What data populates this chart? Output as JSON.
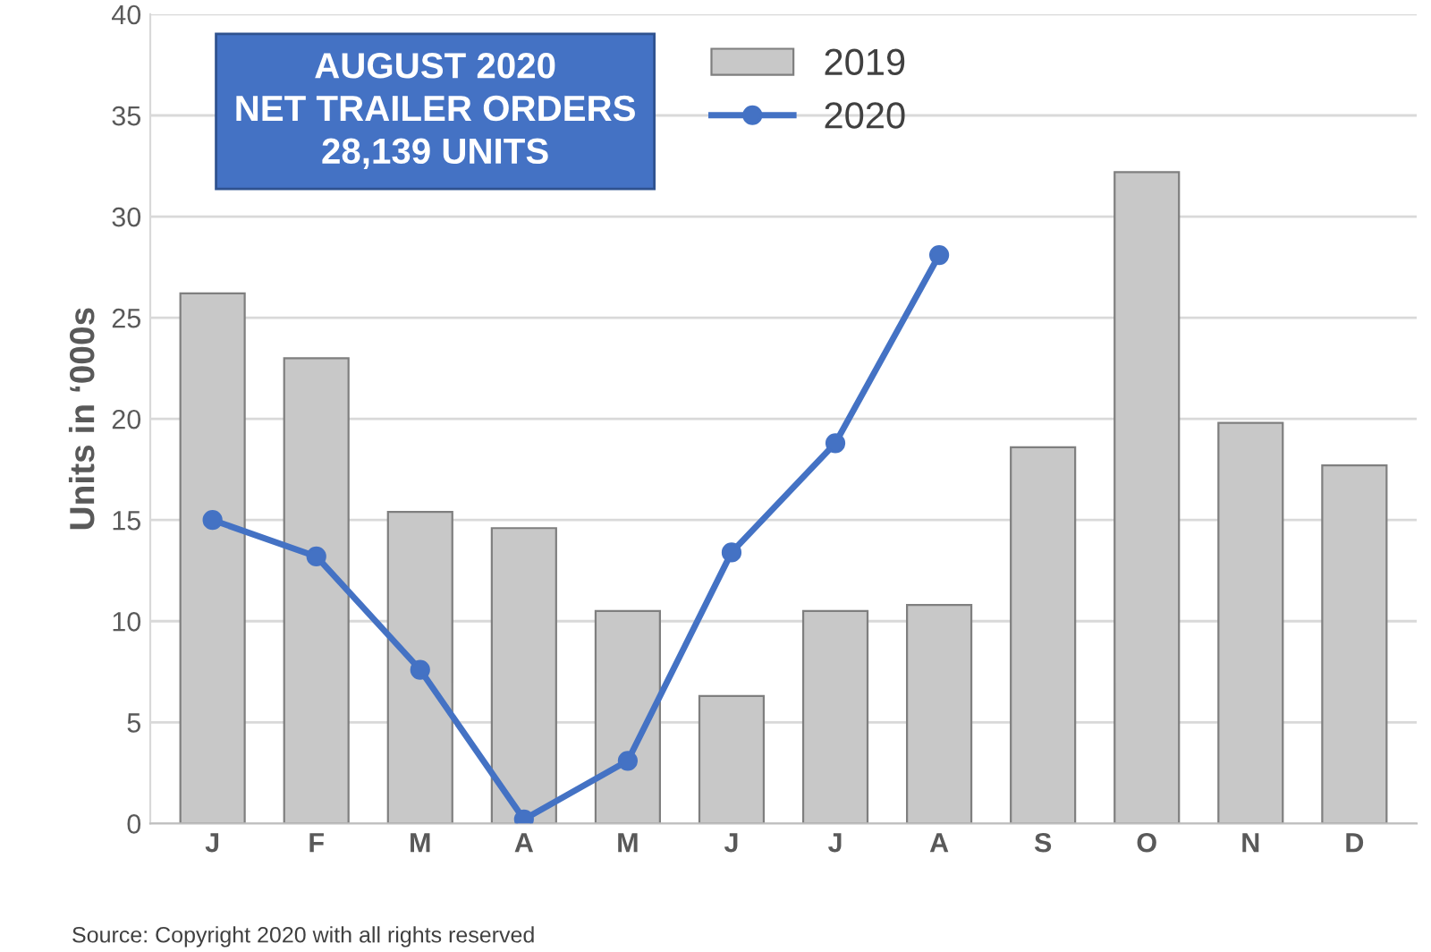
{
  "chart_data": {
    "type": "bar",
    "title": "AUGUST 2020\nNET TRAILER ORDERS\n28,139 UNITS",
    "ylabel": "Units in ‘000s",
    "categories": [
      "J",
      "F",
      "M",
      "A",
      "M",
      "J",
      "J",
      "A",
      "S",
      "O",
      "N",
      "D"
    ],
    "series": [
      {
        "name": "2019",
        "color": "#c8c8c8",
        "values": [
          26.2,
          23.0,
          15.4,
          14.6,
          10.5,
          6.3,
          10.5,
          10.8,
          18.6,
          32.2,
          19.8,
          17.7
        ]
      },
      {
        "name": "2020",
        "type": "line",
        "color": "#4472c4",
        "values": [
          15.0,
          13.2,
          7.6,
          0.2,
          3.1,
          13.4,
          18.8,
          28.1,
          null,
          null,
          null,
          null
        ]
      }
    ],
    "ylim": [
      0,
      40
    ],
    "yticks": [
      0,
      5,
      10,
      15,
      20,
      25,
      30,
      35,
      40
    ],
    "grid": "y",
    "legend": "top",
    "marker": "circle",
    "line_style": "solid",
    "annotations": [
      "Source: Copyright 2020 with all rights reserved"
    ]
  }
}
